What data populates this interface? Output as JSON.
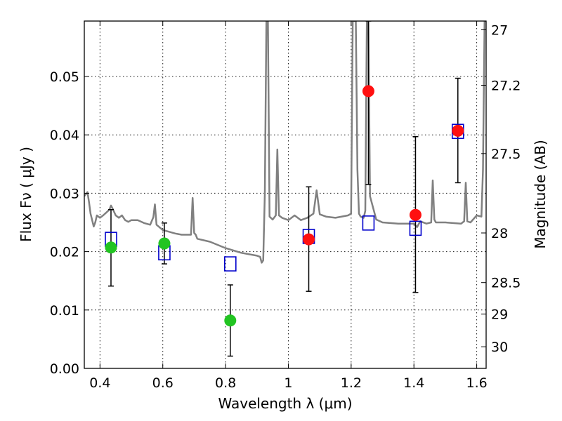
{
  "chart_data": {
    "type": "scatter",
    "xlabel": "Wavelength  λ (μm)",
    "ylabel": "Flux  Fν  ( μJy )",
    "y2label": "Magnitude (AB)",
    "xlim": [
      0.35,
      1.63
    ],
    "ylim": [
      0.0,
      0.0595
    ],
    "x_ticks": [
      0.4,
      0.6,
      0.8,
      1.0,
      1.2,
      1.4,
      1.6
    ],
    "x_tick_labels": [
      "0.4",
      "0.6",
      "0.8",
      "1",
      "1.2",
      "1.4",
      "1.6"
    ],
    "y_ticks": [
      0.0,
      0.01,
      0.02,
      0.03,
      0.04,
      0.05
    ],
    "y_tick_labels": [
      "0.00",
      "0.01",
      "0.02",
      "0.03",
      "0.04",
      "0.05"
    ],
    "magnitude_ticks": [
      {
        "label": "27",
        "flux": 0.058
      },
      {
        "label": "27.2",
        "flux": 0.0485
      },
      {
        "label": "27.5",
        "flux": 0.0368
      },
      {
        "label": "28",
        "flux": 0.0232
      },
      {
        "label": "28.5",
        "flux": 0.0147
      },
      {
        "label": "29",
        "flux": 0.0093
      },
      {
        "label": "30",
        "flux": 0.0037
      }
    ],
    "grid": true,
    "colors": {
      "spectrum": "#808080",
      "green_points": "#22c422",
      "red_points": "#ff1010",
      "model_boxes": "#0000cc",
      "error_bars": "#000000"
    },
    "spectrum": {
      "x": [
        0.35,
        0.36,
        0.365,
        0.37,
        0.38,
        0.385,
        0.39,
        0.4,
        0.41,
        0.42,
        0.43,
        0.435,
        0.44,
        0.45,
        0.46,
        0.47,
        0.48,
        0.49,
        0.5,
        0.52,
        0.54,
        0.56,
        0.57,
        0.575,
        0.58,
        0.6,
        0.62,
        0.64,
        0.66,
        0.68,
        0.69,
        0.695,
        0.7,
        0.705,
        0.71,
        0.75,
        0.8,
        0.85,
        0.9,
        0.91,
        0.915,
        0.92,
        0.925,
        0.93,
        0.935,
        0.94,
        0.95,
        0.96,
        0.965,
        0.97,
        0.98,
        1.0,
        1.02,
        1.04,
        1.06,
        1.08,
        1.09,
        1.1,
        1.12,
        1.15,
        1.19,
        1.2,
        1.205,
        1.21,
        1.215,
        1.22,
        1.225,
        1.23,
        1.24,
        1.245,
        1.25,
        1.255,
        1.26,
        1.28,
        1.3,
        1.35,
        1.4,
        1.41,
        1.42,
        1.44,
        1.455,
        1.46,
        1.465,
        1.47,
        1.5,
        1.55,
        1.56,
        1.565,
        1.57,
        1.58,
        1.6,
        1.615,
        1.62,
        1.625,
        1.63
      ],
      "y": [
        0.0295,
        0.0302,
        0.0285,
        0.0265,
        0.0243,
        0.025,
        0.0262,
        0.0258,
        0.0262,
        0.0267,
        0.0272,
        0.0279,
        0.0274,
        0.0262,
        0.0258,
        0.0262,
        0.0254,
        0.0251,
        0.0254,
        0.0254,
        0.0249,
        0.0246,
        0.0259,
        0.0281,
        0.0246,
        0.0237,
        0.0234,
        0.0231,
        0.0229,
        0.0229,
        0.0229,
        0.0292,
        0.0232,
        0.0229,
        0.0222,
        0.0217,
        0.0206,
        0.0198,
        0.0193,
        0.0191,
        0.0181,
        0.0185,
        0.03,
        0.0595,
        0.0595,
        0.026,
        0.0255,
        0.0262,
        0.0375,
        0.0262,
        0.0258,
        0.0254,
        0.0262,
        0.0254,
        0.0258,
        0.0265,
        0.0305,
        0.0264,
        0.026,
        0.0258,
        0.0262,
        0.0265,
        0.0595,
        0.0595,
        0.0595,
        0.034,
        0.0265,
        0.026,
        0.0258,
        0.027,
        0.0595,
        0.0595,
        0.0295,
        0.0255,
        0.025,
        0.0248,
        0.0248,
        0.0242,
        0.0252,
        0.0248,
        0.025,
        0.0322,
        0.0255,
        0.025,
        0.025,
        0.0248,
        0.0252,
        0.0318,
        0.0252,
        0.025,
        0.0262,
        0.026,
        0.034,
        0.0595,
        0.0595
      ]
    },
    "series": [
      {
        "marker": "circle",
        "color": "#22c422",
        "points": [
          {
            "x": 0.435,
            "y": 0.0207,
            "err_low": 0.0141,
            "err_high": 0.0272
          },
          {
            "x": 0.605,
            "y": 0.0214,
            "err_low": 0.0179,
            "err_high": 0.0249
          },
          {
            "x": 0.815,
            "y": 0.0082,
            "err_low": 0.0021,
            "err_high": 0.0143
          }
        ]
      },
      {
        "marker": "circle",
        "color": "#ff1010",
        "points": [
          {
            "x": 1.065,
            "y": 0.0221,
            "err_low": 0.0132,
            "err_high": 0.0311
          },
          {
            "x": 1.255,
            "y": 0.0475,
            "err_low": 0.0315,
            "err_high": 0.0595
          },
          {
            "x": 1.405,
            "y": 0.0263,
            "err_low": 0.013,
            "err_high": 0.0397
          },
          {
            "x": 1.54,
            "y": 0.0407,
            "err_low": 0.0318,
            "err_high": 0.0497
          }
        ]
      },
      {
        "marker": "square",
        "color": "#0000cc",
        "points": [
          {
            "x": 0.435,
            "y": 0.0221
          },
          {
            "x": 0.605,
            "y": 0.0198
          },
          {
            "x": 0.815,
            "y": 0.0179
          },
          {
            "x": 1.065,
            "y": 0.0226
          },
          {
            "x": 1.255,
            "y": 0.0249
          },
          {
            "x": 1.405,
            "y": 0.024
          },
          {
            "x": 1.54,
            "y": 0.0406
          }
        ]
      }
    ]
  }
}
